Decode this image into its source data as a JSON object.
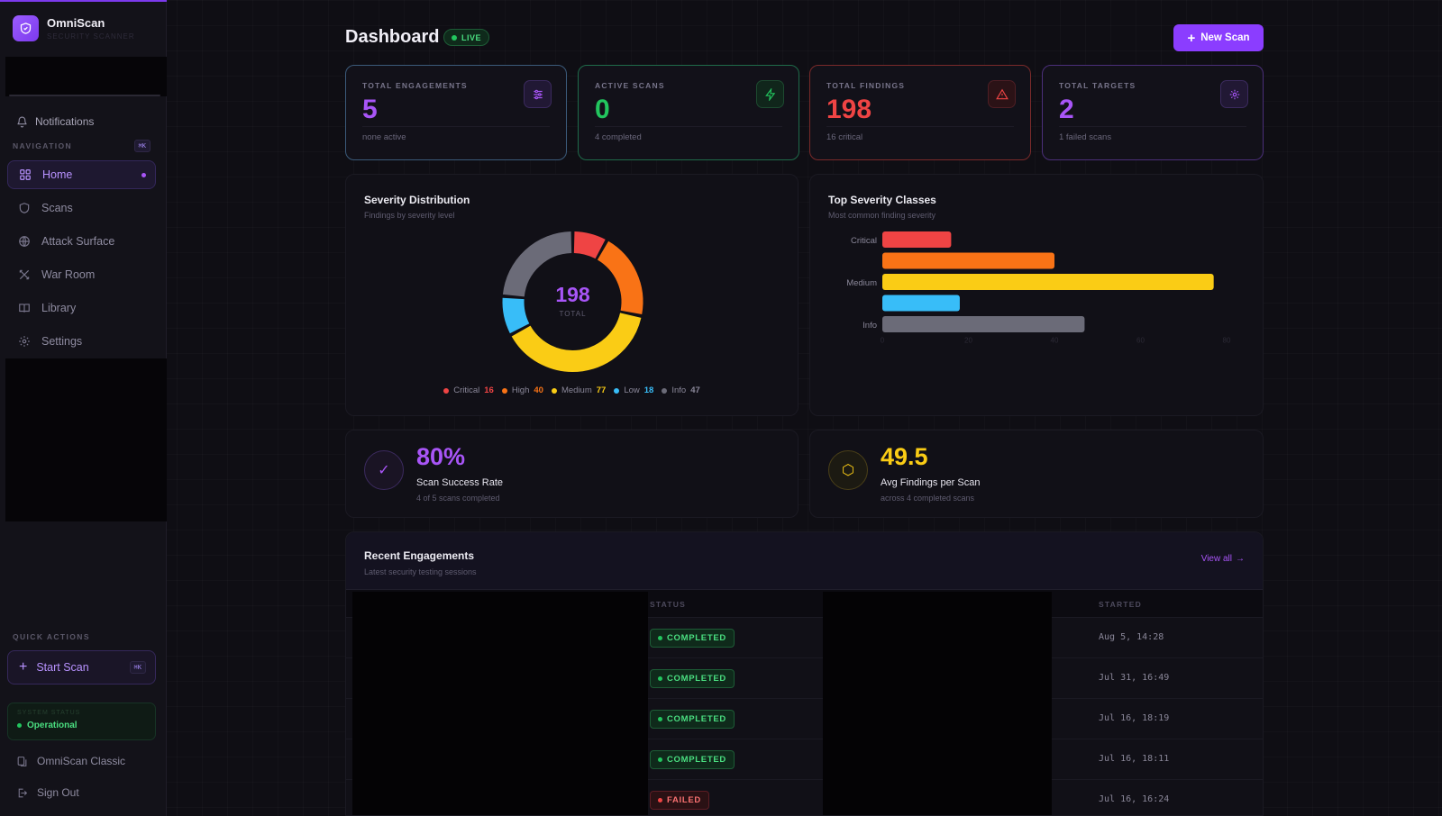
{
  "app": {
    "name": "OmniScan",
    "subtitle": "SECURITY SCANNER"
  },
  "sidebar": {
    "notifications_label": "Notifications",
    "nav_heading": "NAVIGATION",
    "nav_shortcut": "⌘K",
    "items": [
      {
        "label": "Home",
        "icon": "grid-icon",
        "active": true
      },
      {
        "label": "Scans",
        "icon": "shield-icon",
        "active": false
      },
      {
        "label": "Attack Surface",
        "icon": "globe-icon",
        "active": false
      },
      {
        "label": "War Room",
        "icon": "crossed-swords-icon",
        "active": false
      },
      {
        "label": "Library",
        "icon": "book-icon",
        "active": false
      },
      {
        "label": "Settings",
        "icon": "gear-icon",
        "active": false
      }
    ],
    "quick_actions_heading": "QUICK ACTIONS",
    "start_scan_label": "Start Scan",
    "start_scan_shortcut": "⌘K",
    "system_status_label": "SYSTEM STATUS",
    "system_status_value": "Operational",
    "classic_label": "OmniScan Classic",
    "sign_out_label": "Sign Out"
  },
  "header": {
    "title": "Dashboard",
    "live_badge": "LIVE",
    "new_scan_label": "New Scan"
  },
  "stats": [
    {
      "label": "TOTAL ENGAGEMENTS",
      "value": "5",
      "sub": "none active",
      "color": "#a855f7",
      "border": "#3b5a7a",
      "icon": "sliders-icon"
    },
    {
      "label": "ACTIVE SCANS",
      "value": "0",
      "sub": "4 completed",
      "color": "#22c55e",
      "border": "#1f6b4a",
      "icon": "bolt-icon"
    },
    {
      "label": "TOTAL FINDINGS",
      "value": "198",
      "sub": "16 critical",
      "color": "#ef4444",
      "border": "#7a2a2a",
      "icon": "warning-icon"
    },
    {
      "label": "TOTAL TARGETS",
      "value": "2",
      "sub": "1 failed scans",
      "color": "#a855f7",
      "border": "#4b2f7a",
      "icon": "target-icon"
    }
  ],
  "severity_distribution": {
    "title": "Severity Distribution",
    "subtitle": "Findings by severity level",
    "total": "198",
    "total_label": "TOTAL",
    "legend": [
      {
        "name": "Critical",
        "count": "16",
        "color": "#ef4444"
      },
      {
        "name": "High",
        "count": "40",
        "color": "#f97316"
      },
      {
        "name": "Medium",
        "count": "77",
        "color": "#facc15"
      },
      {
        "name": "Low",
        "count": "18",
        "color": "#38bdf8"
      },
      {
        "name": "Info",
        "count": "47",
        "color": "#6b6b78"
      }
    ]
  },
  "top_severity": {
    "title": "Top Severity Classes",
    "subtitle": "Most common finding severity"
  },
  "chart_data": [
    {
      "type": "pie",
      "categories": [
        "Critical",
        "High",
        "Medium",
        "Low",
        "Info"
      ],
      "values": [
        16,
        40,
        77,
        18,
        47
      ],
      "colors": [
        "#ef4444",
        "#f97316",
        "#facc15",
        "#38bdf8",
        "#6b6b78"
      ]
    },
    {
      "type": "bar",
      "orientation": "horizontal",
      "categories": [
        "Critical",
        "High",
        "Medium",
        "Low",
        "Info"
      ],
      "category_tick_labels": [
        "Critical",
        "",
        "Medium",
        "",
        "Info"
      ],
      "values": [
        16,
        40,
        77,
        18,
        47
      ],
      "colors": [
        "#ef4444",
        "#f97316",
        "#facc15",
        "#38bdf8",
        "#6b6b78"
      ],
      "x_ticks": [
        "0",
        "20",
        "40",
        "60",
        "80"
      ],
      "xlim": [
        0,
        80
      ]
    }
  ],
  "metrics": [
    {
      "value": "80%",
      "label": "Scan Success Rate",
      "sub": "4 of 5 scans completed",
      "color": "#a855f7",
      "icon": "check-icon"
    },
    {
      "value": "49.5",
      "label": "Avg Findings per Scan",
      "sub": "across 4 completed scans",
      "color": "#facc15",
      "icon": "hexagon-icon"
    }
  ],
  "recent": {
    "title": "Recent Engagements",
    "subtitle": "Latest security testing sessions",
    "view_all": "View all",
    "columns": [
      "STATUS",
      "STARTED"
    ],
    "rows": [
      {
        "status": "COMPLETED",
        "kind": "ok",
        "started": "Aug 5, 14:28"
      },
      {
        "status": "COMPLETED",
        "kind": "ok",
        "started": "Jul 31, 16:49"
      },
      {
        "status": "COMPLETED",
        "kind": "ok",
        "started": "Jul 16, 18:19"
      },
      {
        "status": "COMPLETED",
        "kind": "ok",
        "started": "Jul 16, 18:11"
      },
      {
        "status": "FAILED",
        "kind": "fail",
        "started": "Jul 16, 16:24"
      }
    ]
  }
}
